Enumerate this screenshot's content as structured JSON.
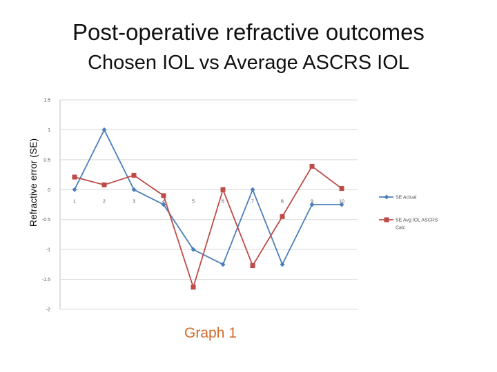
{
  "slide": {
    "title": "Post-operative refractive outcomes",
    "subtitle": "Chosen IOL vs Average ASCRS IOL",
    "caption": "Graph 1"
  },
  "chart_data": {
    "type": "line",
    "title": "",
    "xlabel": "",
    "ylabel": "Refractive error (SE)",
    "categories": [
      "1",
      "2",
      "3",
      "4",
      "5",
      "6",
      "7",
      "8",
      "9",
      "10"
    ],
    "ylim": [
      -2,
      1.5
    ],
    "yticks": [
      1.5,
      1,
      0.5,
      0,
      -0.5,
      -1,
      -1.5,
      -2
    ],
    "ytick_labels": [
      "1.5",
      "1",
      "0.5",
      "0",
      "-0.5",
      "-1",
      "-1.5",
      "-2"
    ],
    "grid": true,
    "legend_position": "right",
    "series": [
      {
        "name": "SE Actual",
        "color": "#4a7ebb",
        "marker": "diamond",
        "values": [
          0,
          1,
          0,
          -0.25,
          -1,
          -1.25,
          0,
          -1.25,
          -0.25,
          -0.25
        ]
      },
      {
        "name": "SE Avg IOL ASCRS Calc",
        "legend_lines": [
          "SE Avg IOL ASCRS",
          "Calc"
        ],
        "color": "#be4b48",
        "marker": "square",
        "values": [
          0.21,
          0.08,
          0.24,
          -0.1,
          -1.63,
          0,
          -1.27,
          -0.45,
          0.39,
          0.02
        ]
      }
    ]
  }
}
